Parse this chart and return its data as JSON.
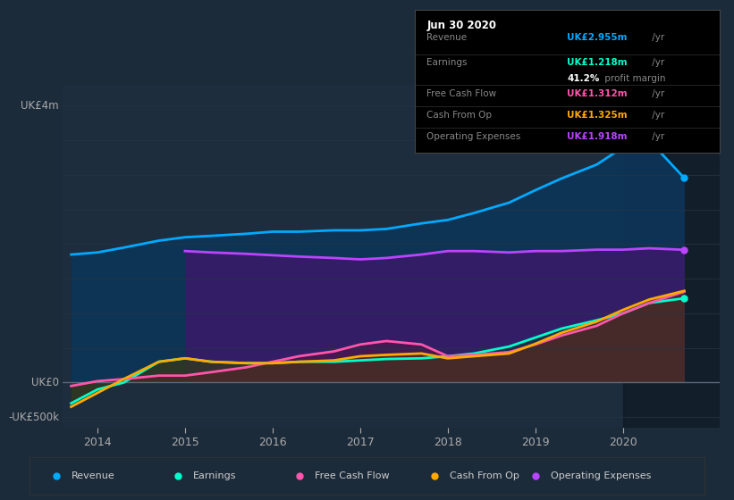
{
  "bg_color": "#1c2b3a",
  "plot_bg_color": "#1e2d3d",
  "ylabel_top": "UK£4m",
  "ylabel_zero": "UK£0",
  "ylabel_neg": "-UK£500k",
  "years": [
    2013.7,
    2014.0,
    2014.3,
    2014.7,
    2015.0,
    2015.3,
    2015.7,
    2016.0,
    2016.3,
    2016.7,
    2017.0,
    2017.3,
    2017.7,
    2018.0,
    2018.3,
    2018.7,
    2019.0,
    2019.3,
    2019.7,
    2020.0,
    2020.3,
    2020.7
  ],
  "revenue": [
    1.85,
    1.88,
    1.95,
    2.05,
    2.1,
    2.12,
    2.15,
    2.18,
    2.18,
    2.2,
    2.2,
    2.22,
    2.3,
    2.35,
    2.45,
    2.6,
    2.78,
    2.95,
    3.15,
    3.4,
    3.5,
    2.955
  ],
  "earnings": [
    -0.3,
    -0.1,
    0.0,
    0.3,
    0.35,
    0.3,
    0.28,
    0.28,
    0.3,
    0.3,
    0.32,
    0.34,
    0.35,
    0.38,
    0.42,
    0.52,
    0.65,
    0.78,
    0.9,
    1.0,
    1.15,
    1.218
  ],
  "free_cf": [
    -0.05,
    0.02,
    0.05,
    0.1,
    0.1,
    0.15,
    0.22,
    0.3,
    0.38,
    0.45,
    0.55,
    0.6,
    0.55,
    0.38,
    0.4,
    0.44,
    0.55,
    0.68,
    0.82,
    1.0,
    1.15,
    1.312
  ],
  "cash_op": [
    -0.35,
    -0.15,
    0.05,
    0.3,
    0.35,
    0.3,
    0.28,
    0.28,
    0.3,
    0.32,
    0.38,
    0.4,
    0.42,
    0.35,
    0.38,
    0.42,
    0.56,
    0.72,
    0.88,
    1.05,
    1.2,
    1.325
  ],
  "op_exp_years": [
    2015.0,
    2015.3,
    2015.7,
    2016.0,
    2016.3,
    2016.7,
    2017.0,
    2017.3,
    2017.7,
    2018.0,
    2018.3,
    2018.7,
    2019.0,
    2019.3,
    2019.7,
    2020.0,
    2020.3,
    2020.7
  ],
  "op_exp": [
    1.9,
    1.88,
    1.86,
    1.84,
    1.82,
    1.8,
    1.78,
    1.8,
    1.85,
    1.9,
    1.9,
    1.88,
    1.9,
    1.9,
    1.92,
    1.92,
    1.94,
    1.918
  ],
  "revenue_color": "#00aaff",
  "earnings_color": "#00ffcc",
  "free_cf_color": "#ff55aa",
  "cash_op_color": "#ffaa00",
  "op_exp_color": "#bb44ff",
  "info_box_title": "Jun 30 2020",
  "info_rows": [
    {
      "label": "Revenue",
      "value": "UK£2.955m",
      "unit": " /yr",
      "color": "#00aaff"
    },
    {
      "label": "Earnings",
      "value": "UK£1.218m",
      "unit": " /yr",
      "color": "#00ffcc",
      "extra": "41.2% profit margin"
    },
    {
      "label": "Free Cash Flow",
      "value": "UK£1.312m",
      "unit": " /yr",
      "color": "#ff55aa"
    },
    {
      "label": "Cash From Op",
      "value": "UK£1.325m",
      "unit": " /yr",
      "color": "#ffaa00"
    },
    {
      "label": "Operating Expenses",
      "value": "UK£1.918m",
      "unit": " /yr",
      "color": "#bb44ff"
    }
  ],
  "legend_items": [
    {
      "label": "Revenue",
      "color": "#00aaff"
    },
    {
      "label": "Earnings",
      "color": "#00ffcc"
    },
    {
      "label": "Free Cash Flow",
      "color": "#ff55aa"
    },
    {
      "label": "Cash From Op",
      "color": "#ffaa00"
    },
    {
      "label": "Operating Expenses",
      "color": "#bb44ff"
    }
  ],
  "ylim": [
    -0.65,
    4.3
  ],
  "xlim_left": 2013.6,
  "xlim_right": 2021.1,
  "xticks": [
    2014,
    2015,
    2016,
    2017,
    2018,
    2019,
    2020
  ],
  "grid_lines": [
    -0.5,
    0.0,
    0.5,
    1.0,
    1.5,
    2.0,
    2.5,
    3.0,
    3.5,
    4.0
  ],
  "highlight_x_start": 2020.0
}
